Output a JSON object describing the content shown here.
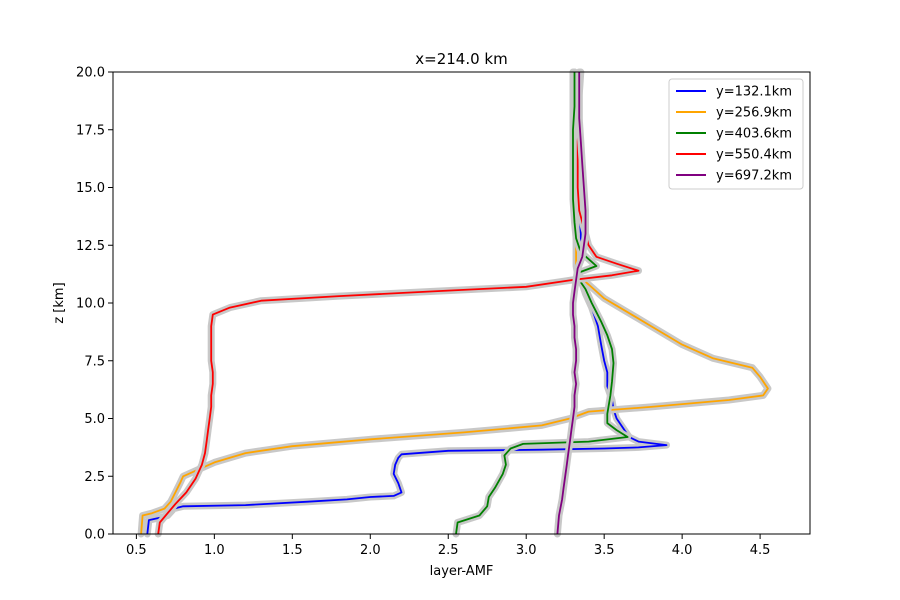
{
  "chart_data": {
    "type": "line",
    "title": "x=214.0 km",
    "xlabel": "layer-AMF",
    "ylabel": "z [km]",
    "xlim": [
      0.35,
      4.82
    ],
    "ylim": [
      0,
      20
    ],
    "x_ticks": [
      0.5,
      1.0,
      1.5,
      2.0,
      2.5,
      3.0,
      3.5,
      4.0,
      4.5
    ],
    "x_tick_labels": [
      "0.5",
      "1.0",
      "1.5",
      "2.0",
      "2.5",
      "3.0",
      "3.5",
      "4.0",
      "4.5"
    ],
    "y_ticks": [
      0,
      2.5,
      5,
      7.5,
      10,
      12.5,
      15,
      17.5,
      20
    ],
    "y_tick_labels": [
      "0.0",
      "2.5",
      "5.0",
      "7.5",
      "10.0",
      "12.5",
      "15.0",
      "17.5",
      "20.0"
    ],
    "grid": false,
    "legend_position": "top-right",
    "uncertainty_band_color": "#c8c8c8",
    "series": [
      {
        "name": "y=132.1km",
        "color": "#0000ff",
        "points": [
          [
            0.57,
            0
          ],
          [
            0.58,
            0.6
          ],
          [
            0.65,
            0.7
          ],
          [
            0.7,
            0.8
          ],
          [
            0.74,
            1.1
          ],
          [
            0.8,
            1.2
          ],
          [
            1.2,
            1.25
          ],
          [
            1.6,
            1.4
          ],
          [
            1.85,
            1.5
          ],
          [
            2.0,
            1.6
          ],
          [
            2.15,
            1.65
          ],
          [
            2.2,
            1.8
          ],
          [
            2.18,
            2.2
          ],
          [
            2.15,
            2.6
          ],
          [
            2.16,
            3.0
          ],
          [
            2.18,
            3.3
          ],
          [
            2.2,
            3.45
          ],
          [
            2.5,
            3.6
          ],
          [
            3.1,
            3.65
          ],
          [
            3.5,
            3.7
          ],
          [
            3.72,
            3.75
          ],
          [
            3.9,
            3.85
          ],
          [
            3.72,
            4.0
          ],
          [
            3.66,
            4.2
          ],
          [
            3.62,
            4.6
          ],
          [
            3.58,
            5.0
          ],
          [
            3.56,
            5.4
          ],
          [
            3.55,
            5.8
          ],
          [
            3.52,
            6.4
          ],
          [
            3.52,
            7.0
          ],
          [
            3.5,
            7.5
          ],
          [
            3.48,
            8.2
          ],
          [
            3.46,
            9.0
          ],
          [
            3.42,
            9.8
          ],
          [
            3.38,
            10.4
          ],
          [
            3.35,
            11.0
          ],
          [
            3.33,
            11.5
          ],
          [
            3.35,
            12.0
          ],
          [
            3.35,
            13.0
          ],
          [
            3.34,
            14.0
          ],
          [
            3.33,
            15.0
          ],
          [
            3.33,
            16.0
          ],
          [
            3.32,
            17.0
          ],
          [
            3.32,
            18.0
          ],
          [
            3.31,
            19.0
          ],
          [
            3.31,
            20.0
          ]
        ]
      },
      {
        "name": "y=256.9km",
        "color": "#ffa500",
        "points": [
          [
            0.53,
            0
          ],
          [
            0.54,
            0.8
          ],
          [
            0.6,
            0.9
          ],
          [
            0.68,
            1.1
          ],
          [
            0.72,
            1.4
          ],
          [
            0.75,
            1.8
          ],
          [
            0.78,
            2.2
          ],
          [
            0.8,
            2.5
          ],
          [
            0.9,
            2.8
          ],
          [
            1.0,
            3.1
          ],
          [
            1.2,
            3.5
          ],
          [
            1.5,
            3.8
          ],
          [
            2.0,
            4.1
          ],
          [
            2.6,
            4.4
          ],
          [
            3.1,
            4.7
          ],
          [
            3.28,
            5.0
          ],
          [
            3.4,
            5.3
          ],
          [
            3.8,
            5.5
          ],
          [
            4.3,
            5.8
          ],
          [
            4.52,
            6.0
          ],
          [
            4.55,
            6.3
          ],
          [
            4.5,
            6.8
          ],
          [
            4.45,
            7.2
          ],
          [
            4.2,
            7.6
          ],
          [
            4.0,
            8.2
          ],
          [
            3.8,
            9.0
          ],
          [
            3.65,
            9.6
          ],
          [
            3.5,
            10.2
          ],
          [
            3.4,
            10.8
          ],
          [
            3.33,
            11.2
          ],
          [
            3.32,
            11.6
          ],
          [
            3.32,
            12.2
          ],
          [
            3.32,
            13.0
          ],
          [
            3.31,
            14.0
          ],
          [
            3.31,
            15.0
          ],
          [
            3.3,
            16.0
          ],
          [
            3.3,
            17.0
          ],
          [
            3.3,
            18.0
          ],
          [
            3.3,
            19.0
          ],
          [
            3.3,
            20.0
          ]
        ]
      },
      {
        "name": "y=403.6km",
        "color": "#008000",
        "points": [
          [
            2.55,
            0
          ],
          [
            2.56,
            0.5
          ],
          [
            2.7,
            0.8
          ],
          [
            2.75,
            1.2
          ],
          [
            2.76,
            1.6
          ],
          [
            2.8,
            2.0
          ],
          [
            2.85,
            2.6
          ],
          [
            2.87,
            3.0
          ],
          [
            2.86,
            3.4
          ],
          [
            2.9,
            3.7
          ],
          [
            2.98,
            3.9
          ],
          [
            3.4,
            4.0
          ],
          [
            3.65,
            4.2
          ],
          [
            3.58,
            4.5
          ],
          [
            3.52,
            4.8
          ],
          [
            3.52,
            5.2
          ],
          [
            3.54,
            6.0
          ],
          [
            3.55,
            6.6
          ],
          [
            3.56,
            7.4
          ],
          [
            3.55,
            8.0
          ],
          [
            3.52,
            8.6
          ],
          [
            3.48,
            9.2
          ],
          [
            3.45,
            9.6
          ],
          [
            3.42,
            10.0
          ],
          [
            3.38,
            10.6
          ],
          [
            3.34,
            11.0
          ],
          [
            3.33,
            11.3
          ],
          [
            3.45,
            11.6
          ],
          [
            3.4,
            11.9
          ],
          [
            3.35,
            12.2
          ],
          [
            3.32,
            12.8
          ],
          [
            3.31,
            13.5
          ],
          [
            3.3,
            14.5
          ],
          [
            3.3,
            15.5
          ],
          [
            3.3,
            16.5
          ],
          [
            3.3,
            17.5
          ],
          [
            3.31,
            18.5
          ],
          [
            3.31,
            20.0
          ]
        ]
      },
      {
        "name": "y=550.4km",
        "color": "#ff0000",
        "points": [
          [
            0.64,
            0
          ],
          [
            0.65,
            0.5
          ],
          [
            0.7,
            0.9
          ],
          [
            0.75,
            1.3
          ],
          [
            0.82,
            1.8
          ],
          [
            0.88,
            2.4
          ],
          [
            0.92,
            3.0
          ],
          [
            0.94,
            3.5
          ],
          [
            0.95,
            4.0
          ],
          [
            0.96,
            4.5
          ],
          [
            0.97,
            5.0
          ],
          [
            0.98,
            5.5
          ],
          [
            0.98,
            6.0
          ],
          [
            0.99,
            6.5
          ],
          [
            0.99,
            7.0
          ],
          [
            0.98,
            7.5
          ],
          [
            0.98,
            8.0
          ],
          [
            0.98,
            8.5
          ],
          [
            0.98,
            9.0
          ],
          [
            0.99,
            9.5
          ],
          [
            1.1,
            9.8
          ],
          [
            1.3,
            10.1
          ],
          [
            1.8,
            10.3
          ],
          [
            2.4,
            10.5
          ],
          [
            3.0,
            10.7
          ],
          [
            3.3,
            11.0
          ],
          [
            3.55,
            11.2
          ],
          [
            3.72,
            11.4
          ],
          [
            3.58,
            11.7
          ],
          [
            3.45,
            12.0
          ],
          [
            3.4,
            12.5
          ],
          [
            3.38,
            13.0
          ],
          [
            3.36,
            13.5
          ],
          [
            3.34,
            14.0
          ],
          [
            3.33,
            15.0
          ],
          [
            3.33,
            16.0
          ],
          [
            3.33,
            17.0
          ],
          [
            3.34,
            18.0
          ],
          [
            3.34,
            19.0
          ],
          [
            3.35,
            20.0
          ]
        ]
      },
      {
        "name": "y=697.2km",
        "color": "#800080",
        "points": [
          [
            3.2,
            0
          ],
          [
            3.21,
            0.8
          ],
          [
            3.23,
            1.5
          ],
          [
            3.24,
            2.0
          ],
          [
            3.25,
            2.5
          ],
          [
            3.26,
            3.0
          ],
          [
            3.27,
            3.5
          ],
          [
            3.28,
            4.0
          ],
          [
            3.29,
            4.5
          ],
          [
            3.3,
            5.0
          ],
          [
            3.31,
            5.5
          ],
          [
            3.31,
            6.0
          ],
          [
            3.32,
            6.5
          ],
          [
            3.31,
            7.0
          ],
          [
            3.32,
            7.5
          ],
          [
            3.32,
            8.0
          ],
          [
            3.31,
            8.5
          ],
          [
            3.31,
            9.0
          ],
          [
            3.3,
            9.5
          ],
          [
            3.3,
            10.0
          ],
          [
            3.31,
            10.5
          ],
          [
            3.32,
            11.0
          ],
          [
            3.33,
            11.5
          ],
          [
            3.36,
            12.0
          ],
          [
            3.38,
            13.0
          ],
          [
            3.38,
            14.0
          ],
          [
            3.37,
            15.0
          ],
          [
            3.36,
            16.0
          ],
          [
            3.35,
            17.0
          ],
          [
            3.34,
            18.0
          ],
          [
            3.34,
            19.0
          ],
          [
            3.34,
            20.0
          ]
        ]
      }
    ]
  }
}
